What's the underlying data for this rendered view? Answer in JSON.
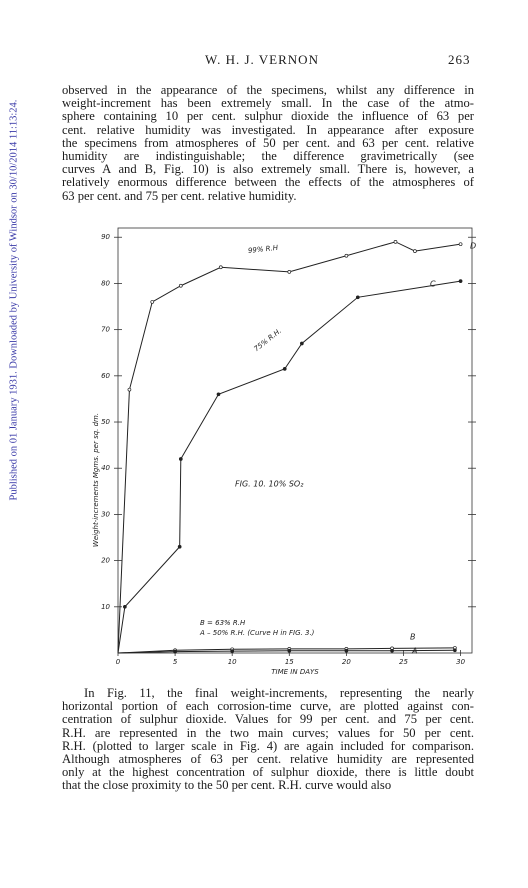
{
  "header": {
    "author": "W. H. J. VERNON",
    "page": "263"
  },
  "side_note": "Published on 01 January 1931. Downloaded by University of Windsor on 30/10/2014 11:13:24.",
  "paragraphs": [
    {
      "lines": [
        "observed in the appearance of the specimens, whilst any difference in",
        "weight-increment has been extremely small.  In the case of the atmo-",
        "sphere containing 10 per cent. sulphur dioxide the influence of 63 per",
        "cent. relative humidity was investigated.  In appearance after exposure",
        "the specimens from atmospheres of 50 per cent. and 63 per cent. relative",
        "humidity are indistinguishable;  the difference gravimetrically (see",
        "curves A and B, Fig. 10) is also extremely small.  There is, however, a",
        "relatively enormous difference between the effects of the atmospheres of",
        "63 per cent. and 75 per cent. relative humidity."
      ]
    },
    {
      "lines": [
        "In Fig. 11, the final weight-increments, representing the nearly",
        "horizontal portion of each corrosion-time curve, are plotted against con-",
        "centration of sulphur dioxide.  Values for 99 per cent. and 75 per cent.",
        "R.H. are represented in the two main curves;  values for 50 per cent.",
        "R.H. (plotted to larger scale in Fig. 4) are again included for comparison.",
        "Although atmospheres of 63 per cent. relative humidity are represented",
        "only at the highest concentration of sulphur dioxide, there is little doubt",
        "that the close proximity to the 50 per cent. R.H. curve would also"
      ]
    }
  ],
  "chart_data": {
    "type": "line",
    "title": "FIG. 10. 10% SO₂",
    "x_label": "TIME   IN   DAYS",
    "y_label": "Weight-increments  Mgms.  per  sq.  dm.",
    "xlim": [
      0,
      31
    ],
    "ylim": [
      0,
      92
    ],
    "xticks": [
      0,
      5,
      10,
      15,
      20,
      25,
      30
    ],
    "yticks": [
      10,
      20,
      30,
      40,
      50,
      60,
      70,
      80,
      90
    ],
    "annotations": [
      "99% R.H",
      "75% R.H.",
      "B = 63% R.H",
      "A – 50% R.H. (Curve H in FIG. 3.)"
    ],
    "series": [
      {
        "name": "D",
        "color": "#222",
        "x": [
          0,
          1,
          3,
          5.5,
          9,
          15,
          20,
          24.3,
          26,
          30
        ],
        "values": [
          0,
          57,
          76,
          79.5,
          83.5,
          82.5,
          86,
          89,
          87,
          88.5
        ]
      },
      {
        "name": "C",
        "color": "#222",
        "x": [
          0,
          0.6,
          5.4,
          5.5,
          8.8,
          14.6,
          16.1,
          21,
          30
        ],
        "values": [
          0,
          10,
          23,
          42,
          56,
          61.5,
          67,
          77,
          80.5
        ]
      },
      {
        "name": "B",
        "color": "#222",
        "x": [
          0,
          5,
          10,
          15,
          20,
          24,
          29.5
        ],
        "values": [
          0,
          0.6,
          0.8,
          0.9,
          0.9,
          1,
          1.1
        ]
      },
      {
        "name": "A",
        "color": "#222",
        "x": [
          0,
          5,
          10,
          15,
          20,
          24,
          29.5
        ],
        "values": [
          0,
          0.3,
          0.4,
          0.5,
          0.5,
          0.5,
          0.6
        ]
      }
    ]
  }
}
